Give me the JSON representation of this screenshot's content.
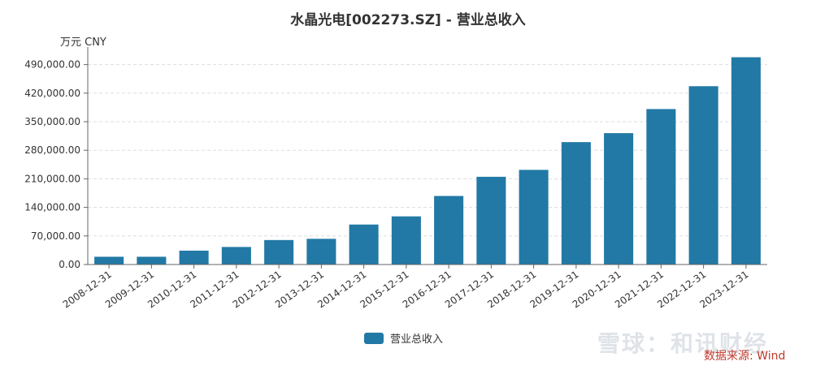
{
  "chart_data": {
    "type": "bar",
    "title": "水晶光电[002273.SZ] - 营业总收入",
    "unit_label": "万元  CNY",
    "categories": [
      "2008-12-31",
      "2009-12-31",
      "2010-12-31",
      "2011-12-31",
      "2012-12-31",
      "2013-12-31",
      "2014-12-31",
      "2015-12-31",
      "2016-12-31",
      "2017-12-31",
      "2018-12-31",
      "2019-12-31",
      "2020-12-31",
      "2021-12-31",
      "2022-12-31",
      "2023-12-31"
    ],
    "series": [
      {
        "name": "营业总收入",
        "color": "#2279a5",
        "values": [
          19000,
          19000,
          34000,
          43000,
          60000,
          63000,
          98000,
          118000,
          168000,
          215000,
          232000,
          300000,
          322000,
          381000,
          437000,
          508000
        ]
      }
    ],
    "yticks": [
      "0.00",
      "70,000.00",
      "140,000.00",
      "210,000.00",
      "280,000.00",
      "350,000.00",
      "420,000.00",
      "490,000.00"
    ],
    "ytick_values": [
      0,
      70000,
      140000,
      210000,
      280000,
      350000,
      420000,
      490000
    ],
    "ylim": [
      0,
      525000
    ],
    "grid": true,
    "legend_position": "bottom-center"
  },
  "watermark": "雪球：和讯财经",
  "source": "数据来源: Wind"
}
